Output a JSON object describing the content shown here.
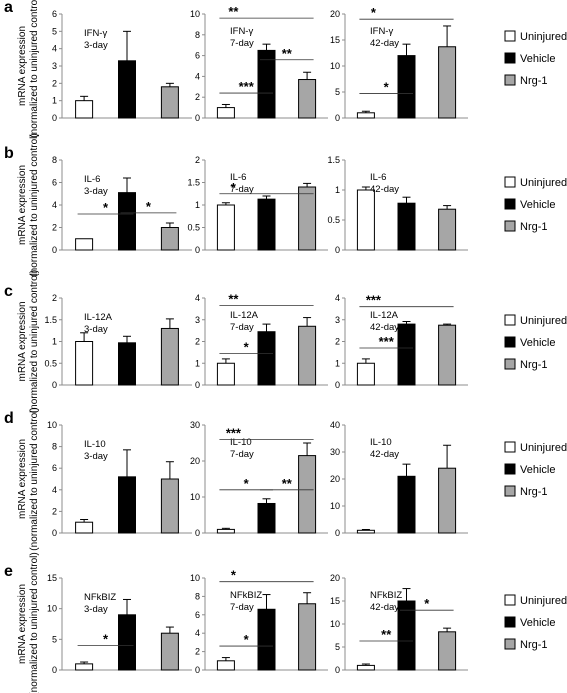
{
  "legend": [
    {
      "label": "Uninjured",
      "color": "#ffffff"
    },
    {
      "label": "Vehicle",
      "color": "#000000"
    },
    {
      "label": "Nrg-1",
      "color": "#a6a6a6"
    }
  ],
  "colors": {
    "uninjured": "#ffffff",
    "vehicle": "#000000",
    "nrg1": "#a6a6a6",
    "axis": "#8c8c8c"
  },
  "chart_data": [
    {
      "type": "bar",
      "panel": "a",
      "row_label": "a",
      "ylabel": "mRNA expression  (normalized to uninjured control)",
      "annotation": [
        "IFN-γ",
        "3-day"
      ],
      "ylim": [
        0,
        6
      ],
      "ticks": [
        "0",
        "1",
        "2",
        "3",
        "4",
        "5",
        "6"
      ],
      "categories": [
        "Uninjured",
        "Vehicle",
        "Nrg-1"
      ],
      "values": [
        1.0,
        3.3,
        1.8
      ],
      "errors": [
        0.25,
        1.7,
        0.2
      ],
      "significance": []
    },
    {
      "type": "bar",
      "panel": "a",
      "row_label": "",
      "ylabel": "",
      "annotation": [
        "IFN-γ",
        "7-day"
      ],
      "ylim": [
        0,
        10
      ],
      "ticks": [
        "0",
        "2",
        "4",
        "6",
        "8",
        "10"
      ],
      "categories": [
        "Uninjured",
        "Vehicle",
        "Nrg-1"
      ],
      "values": [
        1.0,
        6.5,
        3.7
      ],
      "errors": [
        0.3,
        0.6,
        0.7
      ],
      "significance": [
        {
          "from": 0,
          "to": 2,
          "y": 9.6,
          "label": "**"
        },
        {
          "from": 1,
          "to": 2,
          "y": 5.6,
          "label": "**"
        },
        {
          "from": 0,
          "to": 1,
          "y": 2.4,
          "label": "***"
        }
      ]
    },
    {
      "type": "bar",
      "panel": "a",
      "row_label": "",
      "ylabel": "",
      "annotation": [
        "IFN-γ",
        "42-day"
      ],
      "ylim": [
        0,
        20
      ],
      "ticks": [
        "0",
        "5",
        "10",
        "15",
        "20"
      ],
      "categories": [
        "Uninjured",
        "Vehicle",
        "Nrg-1"
      ],
      "values": [
        1.0,
        12.0,
        13.7
      ],
      "errors": [
        0.3,
        2.2,
        4.0
      ],
      "significance": [
        {
          "from": 0,
          "to": 2,
          "y": 19.0,
          "label": "*"
        },
        {
          "from": 0,
          "to": 1,
          "y": 4.7,
          "label": "*"
        }
      ]
    },
    {
      "type": "bar",
      "panel": "b",
      "row_label": "b",
      "ylabel": "mRNA expression  (normalized to uninjured control)",
      "annotation": [
        "IL-6",
        "3-day"
      ],
      "ylim": [
        0,
        8
      ],
      "ticks": [
        "0",
        "2",
        "4",
        "6",
        "8"
      ],
      "categories": [
        "Uninjured",
        "Vehicle",
        "Nrg-1"
      ],
      "values": [
        1.0,
        5.1,
        2.0
      ],
      "errors": [
        0.0,
        1.3,
        0.4
      ],
      "significance": [
        {
          "from": 0,
          "to": 1,
          "y": 3.2,
          "label": "*"
        },
        {
          "from": 1,
          "to": 2,
          "y": 3.3,
          "label": "*"
        }
      ]
    },
    {
      "type": "bar",
      "panel": "b",
      "row_label": "",
      "ylabel": "",
      "annotation": [
        "IL-6",
        "7-day"
      ],
      "ylim": [
        0,
        2
      ],
      "ticks": [
        "0",
        "0.5",
        "1",
        "1.5",
        "2"
      ],
      "categories": [
        "Uninjured",
        "Vehicle",
        "Nrg-1"
      ],
      "values": [
        1.0,
        1.13,
        1.4
      ],
      "errors": [
        0.05,
        0.07,
        0.08
      ],
      "significance": [
        {
          "from": 0,
          "to": 2,
          "y": 1.25,
          "label": "*"
        }
      ]
    },
    {
      "type": "bar",
      "panel": "b",
      "row_label": "",
      "ylabel": "",
      "annotation": [
        "IL-6",
        "42-day"
      ],
      "ylim": [
        0,
        1.5
      ],
      "ticks": [
        "0",
        "0.5",
        "1",
        "1.5"
      ],
      "categories": [
        "Uninjured",
        "Vehicle",
        "Nrg-1"
      ],
      "values": [
        1.0,
        0.78,
        0.68
      ],
      "errors": [
        0.05,
        0.1,
        0.06
      ],
      "significance": []
    },
    {
      "type": "bar",
      "panel": "c",
      "row_label": "c",
      "ylabel": "mRNA expression  (normalized to uninjured control)",
      "annotation": [
        "IL-12A",
        "3-day"
      ],
      "ylim": [
        0,
        2
      ],
      "ticks": [
        "0",
        "0.5",
        "1",
        "1.5",
        "2"
      ],
      "categories": [
        "Uninjured",
        "Vehicle",
        "Nrg-1"
      ],
      "values": [
        1.0,
        0.97,
        1.3
      ],
      "errors": [
        0.2,
        0.15,
        0.22
      ],
      "significance": []
    },
    {
      "type": "bar",
      "panel": "c",
      "row_label": "",
      "ylabel": "",
      "annotation": [
        "IL-12A",
        "7-day"
      ],
      "ylim": [
        0,
        4
      ],
      "ticks": [
        "0",
        "1",
        "2",
        "3",
        "4"
      ],
      "categories": [
        "Uninjured",
        "Vehicle",
        "Nrg-1"
      ],
      "values": [
        1.0,
        2.45,
        2.7
      ],
      "errors": [
        0.2,
        0.35,
        0.4
      ],
      "significance": [
        {
          "from": 0,
          "to": 2,
          "y": 3.65,
          "label": "**"
        },
        {
          "from": 0,
          "to": 1,
          "y": 1.45,
          "label": "*"
        }
      ]
    },
    {
      "type": "bar",
      "panel": "c",
      "row_label": "",
      "ylabel": "",
      "annotation": [
        "IL-12A",
        "42-day"
      ],
      "ylim": [
        0,
        4
      ],
      "ticks": [
        "0",
        "1",
        "2",
        "3",
        "4"
      ],
      "categories": [
        "Uninjured",
        "Vehicle",
        "Nrg-1"
      ],
      "values": [
        1.0,
        2.8,
        2.75
      ],
      "errors": [
        0.2,
        0.12,
        0.05
      ],
      "significance": [
        {
          "from": 0,
          "to": 2,
          "y": 3.6,
          "label": "***"
        },
        {
          "from": 0,
          "to": 1,
          "y": 1.7,
          "label": "***"
        }
      ]
    },
    {
      "type": "bar",
      "panel": "d",
      "row_label": "d",
      "ylabel": "mRNA expression  (normalized to uninjured control)",
      "annotation": [
        "IL-10",
        "3-day"
      ],
      "ylim": [
        0,
        10
      ],
      "ticks": [
        "0",
        "2",
        "4",
        "6",
        "8",
        "10"
      ],
      "categories": [
        "Uninjured",
        "Vehicle",
        "Nrg-1"
      ],
      "values": [
        1.0,
        5.2,
        5.0
      ],
      "errors": [
        0.25,
        2.5,
        1.6
      ],
      "significance": []
    },
    {
      "type": "bar",
      "panel": "d",
      "row_label": "",
      "ylabel": "",
      "annotation": [
        "IL-10",
        "7-day"
      ],
      "ylim": [
        0,
        30
      ],
      "ticks": [
        "0",
        "10",
        "20",
        "30"
      ],
      "categories": [
        "Uninjured",
        "Vehicle",
        "Nrg-1"
      ],
      "values": [
        1.0,
        8.2,
        21.5
      ],
      "errors": [
        0.3,
        1.3,
        3.5
      ],
      "significance": [
        {
          "from": 0,
          "to": 2,
          "y": 26.0,
          "label": "***"
        },
        {
          "from": 0,
          "to": 1,
          "y": 12.0,
          "label": "*"
        },
        {
          "from": 1,
          "to": 2,
          "y": 12.0,
          "label": "**"
        }
      ]
    },
    {
      "type": "bar",
      "panel": "d",
      "row_label": "",
      "ylabel": "",
      "annotation": [
        "IL-10",
        "42-day"
      ],
      "ylim": [
        0,
        40
      ],
      "ticks": [
        "0",
        "10",
        "20",
        "30",
        "40"
      ],
      "categories": [
        "Uninjured",
        "Vehicle",
        "Nrg-1"
      ],
      "values": [
        1.0,
        21.0,
        24.0
      ],
      "errors": [
        0.3,
        4.5,
        8.5
      ],
      "significance": []
    },
    {
      "type": "bar",
      "panel": "e",
      "row_label": "e",
      "ylabel": "mRNA expression  (normalized to uninjured control)",
      "annotation": [
        "NFkBIZ",
        "3-day"
      ],
      "ylim": [
        0,
        15
      ],
      "ticks": [
        "0",
        "5",
        "10",
        "15"
      ],
      "categories": [
        "Uninjured",
        "Vehicle",
        "Nrg-1"
      ],
      "values": [
        1.0,
        9.0,
        6.0
      ],
      "errors": [
        0.3,
        2.5,
        1.0
      ],
      "significance": [
        {
          "from": 0,
          "to": 1,
          "y": 4.0,
          "label": "*"
        }
      ]
    },
    {
      "type": "bar",
      "panel": "e",
      "row_label": "",
      "ylabel": "",
      "annotation": [
        "NFkBIZ",
        "7-day"
      ],
      "ylim": [
        0,
        10
      ],
      "ticks": [
        "0",
        "2",
        "4",
        "6",
        "8",
        "10"
      ],
      "categories": [
        "Uninjured",
        "Vehicle",
        "Nrg-1"
      ],
      "values": [
        1.0,
        6.6,
        7.2
      ],
      "errors": [
        0.35,
        1.6,
        1.2
      ],
      "significance": [
        {
          "from": 0,
          "to": 2,
          "y": 9.6,
          "label": "*"
        },
        {
          "from": 0,
          "to": 1,
          "y": 2.6,
          "label": "*"
        }
      ]
    },
    {
      "type": "bar",
      "panel": "e",
      "row_label": "",
      "ylabel": "",
      "annotation": [
        "NFkBIZ",
        "42-day"
      ],
      "ylim": [
        0,
        20
      ],
      "ticks": [
        "0",
        "5",
        "10",
        "15",
        "20"
      ],
      "categories": [
        "Uninjured",
        "Vehicle",
        "Nrg-1"
      ],
      "values": [
        1.0,
        15.0,
        8.3
      ],
      "errors": [
        0.3,
        2.7,
        0.8
      ],
      "significance": [
        {
          "from": 0,
          "to": 1,
          "y": 6.3,
          "label": "**"
        },
        {
          "from": 1,
          "to": 2,
          "y": 13.0,
          "label": "*"
        }
      ]
    }
  ]
}
